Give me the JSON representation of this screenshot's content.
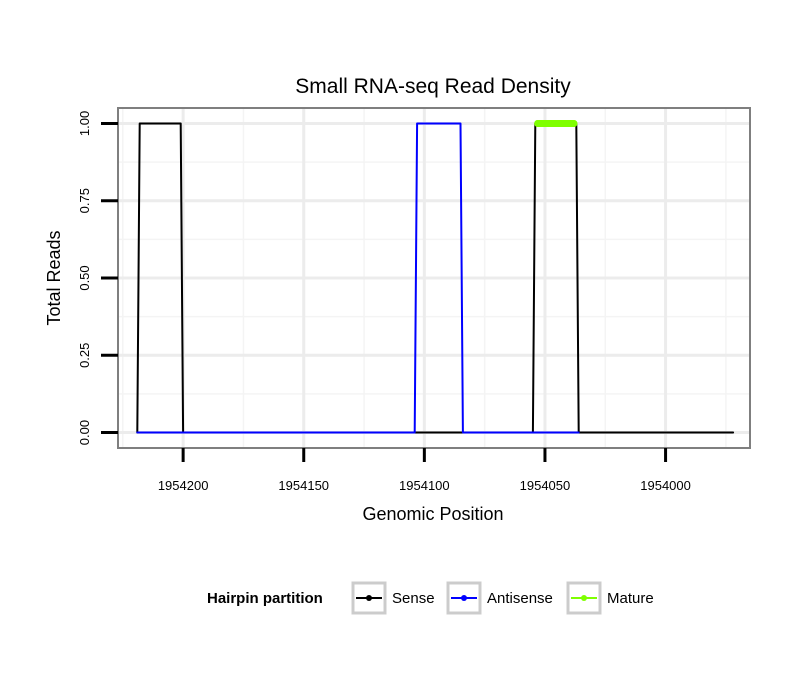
{
  "chart_data": {
    "type": "line",
    "title": "Small RNA-seq Read Density",
    "xlabel": "Genomic Position",
    "ylabel": "Total Reads",
    "x_reversed": true,
    "xlim": [
      1954227,
      1953965
    ],
    "ylim": [
      -0.05,
      1.05
    ],
    "x_ticks": [
      1954200,
      1954150,
      1954100,
      1954050,
      1954000
    ],
    "x_tick_labels": [
      "1954200",
      "1954150",
      "1954100",
      "1954050",
      "1954000"
    ],
    "y_ticks": [
      0,
      0.25,
      0.5,
      0.75,
      1
    ],
    "y_tick_labels": [
      "0.00",
      "0.25",
      "0.50",
      "0.75",
      "1.00"
    ],
    "grid": true,
    "legend": {
      "title": "Hairpin partition",
      "position": "bottom",
      "entries": [
        "Sense",
        "Antisense",
        "Mature"
      ]
    },
    "series": [
      {
        "name": "Sense",
        "color": "#000000",
        "x": [
          1954219,
          1954218,
          1954201,
          1954200,
          1954104,
          1954103,
          1954062,
          1954061,
          1954055,
          1954054,
          1954037,
          1954036,
          1953972
        ],
        "y": [
          0,
          1,
          1,
          0,
          0,
          0,
          0,
          0,
          0,
          1,
          1,
          0,
          0
        ]
      },
      {
        "name": "Antisense",
        "color": "#0000ff",
        "x": [
          1954219,
          1954200,
          1954104,
          1954103,
          1954085,
          1954084,
          1954037,
          1954036
        ],
        "y": [
          0,
          0,
          0,
          1,
          1,
          0,
          0,
          0
        ]
      },
      {
        "name": "Mature",
        "color": "#7fff00",
        "x": [
          1954053,
          1954038
        ],
        "y": [
          1,
          1
        ]
      }
    ]
  }
}
